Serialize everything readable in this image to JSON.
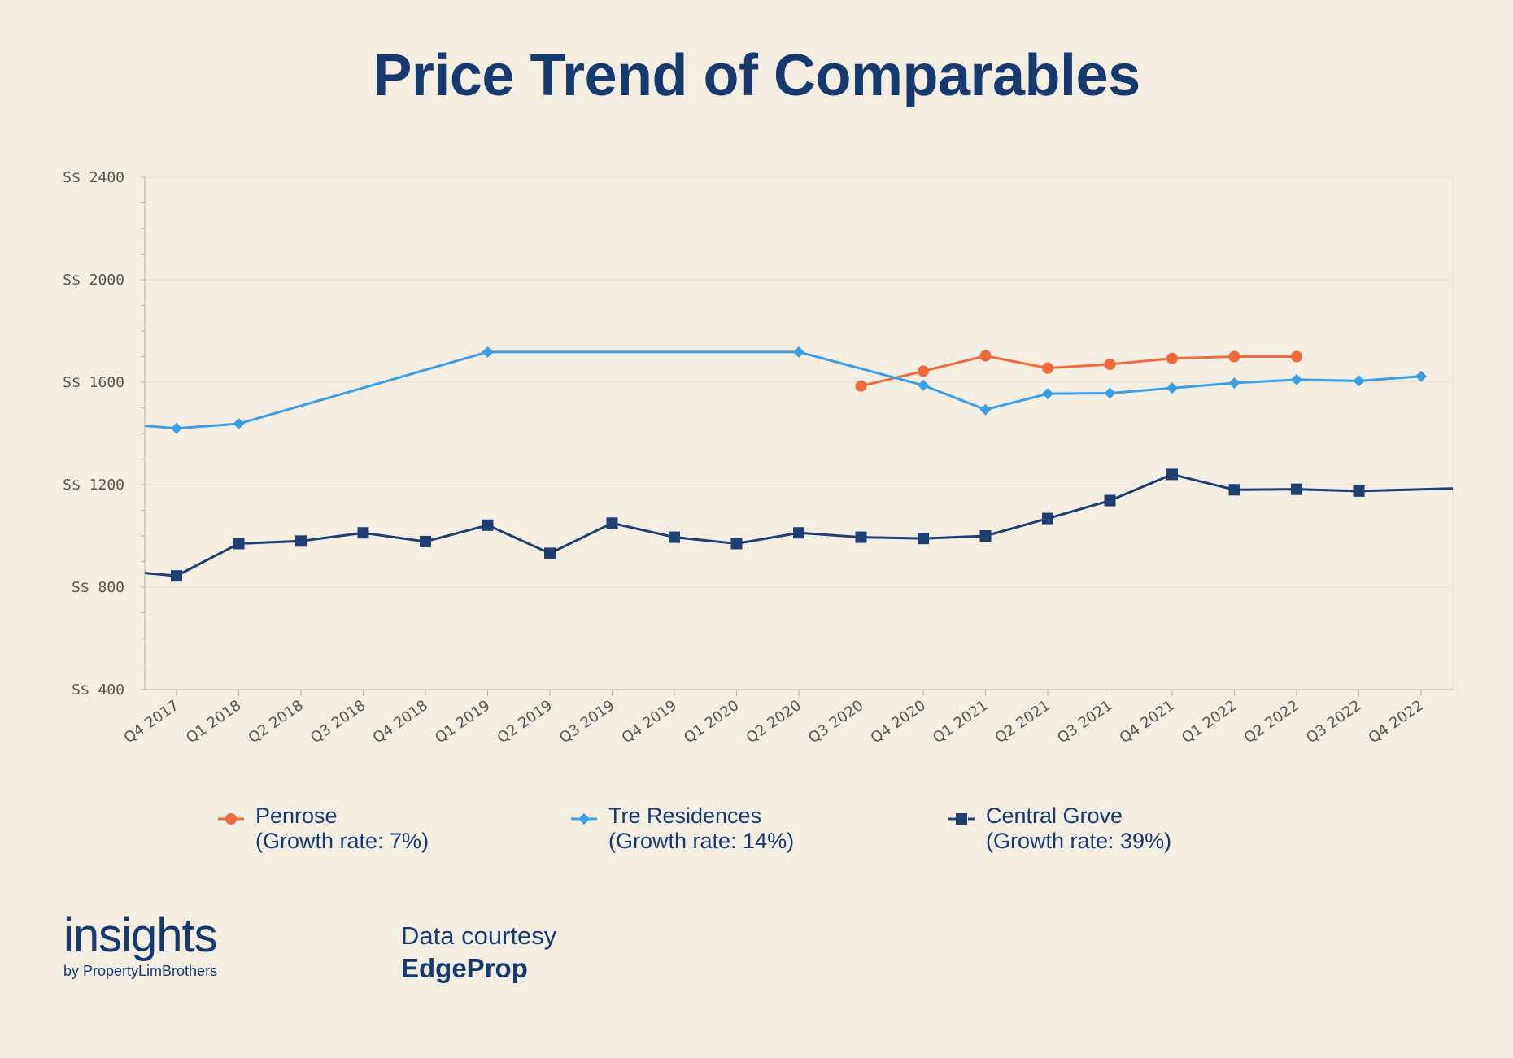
{
  "chart_data": {
    "type": "line",
    "title": "Price Trend of Comparables",
    "categories": [
      "Q4 2017",
      "Q1 2018",
      "Q2 2018",
      "Q3 2018",
      "Q4 2018",
      "Q1 2019",
      "Q2 2019",
      "Q3 2019",
      "Q4 2019",
      "Q1 2020",
      "Q2 2020",
      "Q3 2020",
      "Q4 2020",
      "Q1 2021",
      "Q2 2021",
      "Q3 2021",
      "Q4 2021",
      "Q1 2022",
      "Q2 2022",
      "Q3 2022",
      "Q4 2022"
    ],
    "yticks": [
      "S$ 400",
      "S$ 800",
      "S$ 1200",
      "S$ 1600",
      "S$ 2000",
      "S$ 2400"
    ],
    "ylim": [
      400,
      2400
    ],
    "grid": true,
    "legend_position": "bottom",
    "series": [
      {
        "name": "Penrose",
        "legend_note": "(Growth rate: 7%)",
        "color": "#f06a3c",
        "marker": "circle",
        "values": [
          null,
          null,
          null,
          null,
          null,
          null,
          null,
          null,
          null,
          null,
          null,
          1585,
          1643,
          1703,
          1655,
          1670,
          1693,
          1700,
          1700,
          null,
          null
        ]
      },
      {
        "name": "Tre Residences",
        "legend_note": "(Growth rate: 14%)",
        "color": "#3b9fe6",
        "marker": "diamond",
        "values": [
          1420,
          1438,
          null,
          null,
          null,
          1718,
          null,
          null,
          null,
          null,
          1718,
          null,
          1588,
          1493,
          1555,
          1557,
          1577,
          1597,
          1610,
          1605,
          1623
        ]
      },
      {
        "name": "Central Grove",
        "legend_note": "(Growth rate: 39%)",
        "color": "#1f3f72",
        "marker": "square",
        "values": [
          844,
          970,
          980,
          1012,
          978,
          1042,
          932,
          1050,
          995,
          970,
          1012,
          995,
          990,
          1000,
          1068,
          1138,
          1240,
          1180,
          1182,
          1175,
          null
        ]
      }
    ]
  },
  "legend": {
    "items": [
      {
        "name": "Penrose",
        "note": "(Growth rate: 7%)"
      },
      {
        "name": "Tre Residences",
        "note": "(Growth rate: 14%)"
      },
      {
        "name": "Central Grove",
        "note": "(Growth rate: 39%)"
      }
    ]
  },
  "footer": {
    "logo_main": "insights",
    "logo_sub": "by PropertyLimBrothers",
    "credit_label": "Data courtesy",
    "credit_source": "EdgeProp"
  }
}
